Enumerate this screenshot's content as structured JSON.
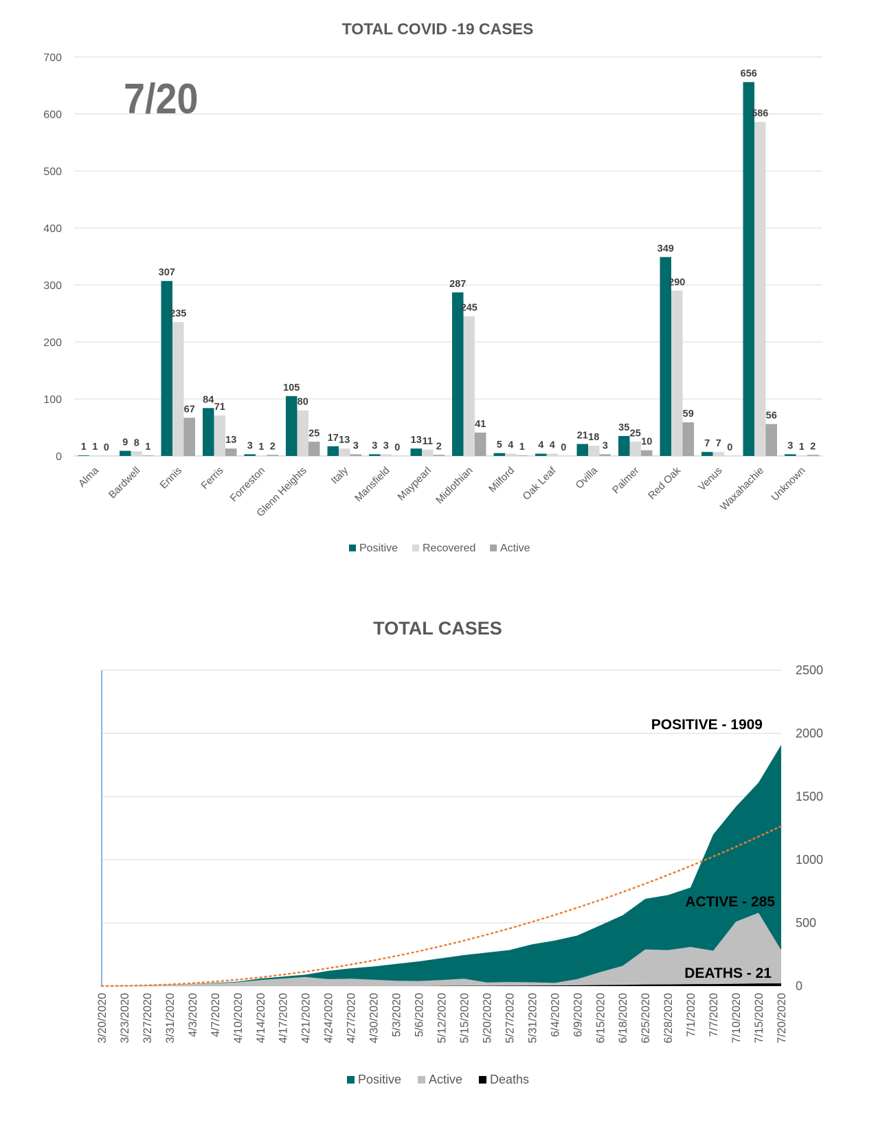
{
  "chart_data": [
    {
      "type": "bar",
      "title": "TOTAL COVID -19 CASES",
      "annotation": "7/20",
      "categories": [
        "Alma",
        "Bardwell",
        "Ennis",
        "Ferris",
        "Forreston",
        "Glenn Heights",
        "Italy",
        "Mansfield",
        "Maypearl",
        "Midlothian",
        "Milford",
        "Oak Leaf",
        "Ovilla",
        "Palmer",
        "Red Oak",
        "Venus",
        "Waxahachie",
        "Unknown"
      ],
      "series": [
        {
          "name": "Positive",
          "color": "#006B6B",
          "values": [
            1,
            9,
            307,
            84,
            3,
            105,
            17,
            3,
            13,
            287,
            5,
            4,
            21,
            35,
            349,
            7,
            656,
            3
          ]
        },
        {
          "name": "Recovered",
          "color": "#D9D9D9",
          "values": [
            1,
            8,
            235,
            71,
            1,
            80,
            13,
            3,
            11,
            245,
            4,
            4,
            18,
            25,
            290,
            7,
            586,
            1
          ]
        },
        {
          "name": "Active",
          "color": "#A6A6A6",
          "values": [
            0,
            1,
            67,
            13,
            2,
            25,
            3,
            0,
            2,
            41,
            1,
            0,
            3,
            10,
            59,
            0,
            56,
            2
          ]
        }
      ],
      "ylim": [
        0,
        700
      ],
      "yticks": [
        "0",
        "100",
        "200",
        "300",
        "400",
        "500",
        "600",
        "700"
      ],
      "grid": true,
      "legend": "bottom"
    },
    {
      "type": "area",
      "title": "TOTAL CASES",
      "x_ticks": [
        "3/20/2020",
        "3/23/2020",
        "3/27/2020",
        "3/31/2020",
        "4/3/2020",
        "4/7/2020",
        "4/10/2020",
        "4/14/2020",
        "4/17/2020",
        "4/21/2020",
        "4/24/2020",
        "4/27/2020",
        "4/30/2020",
        "5/3/2020",
        "5/6/2020",
        "5/12/2020",
        "5/15/2020",
        "5/20/2020",
        "5/27/2020",
        "5/31/2020",
        "6/4/2020",
        "6/9/2020",
        "6/15/2020",
        "6/18/2020",
        "6/25/2020",
        "6/28/2020",
        "7/1/2020",
        "7/7/2020",
        "7/10/2020",
        "7/15/2020",
        "7/20/2020"
      ],
      "series": [
        {
          "name": "Positive",
          "color": "#006B6B",
          "values": [
            0,
            5,
            8,
            12,
            18,
            25,
            35,
            60,
            75,
            90,
            120,
            140,
            155,
            175,
            195,
            220,
            245,
            265,
            285,
            330,
            360,
            400,
            480,
            560,
            690,
            720,
            780,
            1200,
            1420,
            1610,
            1909
          ]
        },
        {
          "name": "Active",
          "color": "#BFBFBF",
          "values": [
            0,
            5,
            8,
            12,
            18,
            22,
            30,
            48,
            60,
            72,
            55,
            58,
            50,
            42,
            40,
            48,
            58,
            28,
            32,
            30,
            25,
            55,
            110,
            160,
            290,
            285,
            310,
            280,
            510,
            580,
            285
          ]
        },
        {
          "name": "Deaths",
          "color": "#000000",
          "values": [
            0,
            0,
            0,
            0,
            0,
            0,
            0,
            0,
            0,
            0,
            0,
            0,
            0,
            0,
            0,
            1,
            2,
            2,
            3,
            4,
            5,
            6,
            8,
            10,
            12,
            13,
            15,
            16,
            18,
            20,
            21
          ]
        }
      ],
      "trend_color": "#ED7D31",
      "ylim": [
        0,
        2500
      ],
      "yticks": [
        "0",
        "500",
        "1000",
        "1500",
        "2000",
        "2500"
      ],
      "annotations": {
        "positive": "POSITIVE - 1909",
        "active": "ACTIVE - 285",
        "deaths": "DEATHS - 21"
      },
      "grid": true,
      "legend": "bottom"
    }
  ]
}
